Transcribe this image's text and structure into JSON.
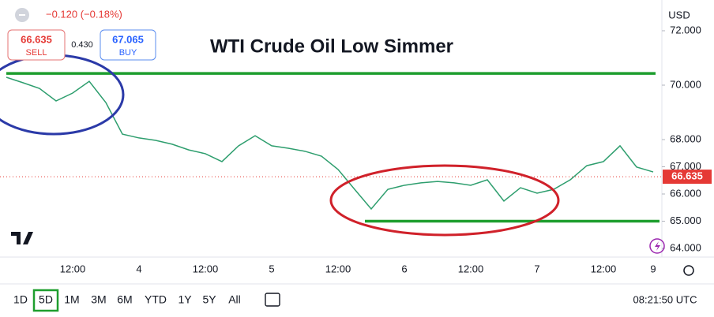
{
  "chart_data": {
    "type": "line",
    "title": "WTI Crude Oil Low Simmer",
    "categories": [
      null,
      null,
      null,
      null,
      "12:00",
      null,
      null,
      null,
      "4",
      null,
      null,
      null,
      "12:00",
      null,
      null,
      null,
      "5",
      null,
      null,
      null,
      "12:00",
      null,
      null,
      null,
      "6",
      null,
      null,
      null,
      "12:00",
      null,
      null,
      null,
      "7",
      null,
      null,
      null,
      "12:00",
      null,
      null,
      "9"
    ],
    "series": [
      {
        "color": "#2e9e6e",
        "values": [
          70.29,
          70.09,
          69.88,
          69.42,
          69.71,
          70.14,
          69.36,
          68.2,
          68.06,
          67.97,
          67.83,
          67.62,
          67.48,
          67.19,
          67.77,
          68.14,
          67.77,
          67.68,
          67.57,
          67.39,
          66.9,
          66.17,
          65.45,
          66.17,
          66.32,
          66.41,
          66.46,
          66.41,
          66.32,
          66.52,
          65.74,
          66.23,
          66.03,
          66.17,
          66.52,
          67.04,
          67.19,
          67.77,
          66.99,
          66.81
        ]
      }
    ],
    "ylim": [
      63.71,
      73.13
    ],
    "yticks": [
      {
        "value": 64,
        "label": "64.000"
      },
      {
        "value": 65,
        "label": "65.000"
      },
      {
        "value": 66,
        "label": "66.000"
      },
      {
        "value": 67,
        "label": "67.000"
      },
      {
        "value": 68,
        "label": "68.000"
      },
      {
        "value": 70,
        "label": "70.000"
      },
      {
        "value": 72,
        "label": "72.000"
      }
    ],
    "grid": false,
    "levels": [
      70.43,
      65.0
    ],
    "level_color": "#1e9e2e",
    "last_price": 66.635,
    "last_price_color": "#e53935",
    "currency": "USD"
  },
  "header": {
    "change": "−0.120 (−0.18%)",
    "sell_price": "66.635",
    "sell": "SELL",
    "spread": "0.430",
    "buy_price": "67.065",
    "buy": "BUY"
  },
  "toolbar": {
    "ranges": [
      "1D",
      "5D",
      "1M",
      "3M",
      "6M",
      "YTD",
      "1Y",
      "5Y",
      "All"
    ],
    "time": "08:21:50 UTC"
  }
}
